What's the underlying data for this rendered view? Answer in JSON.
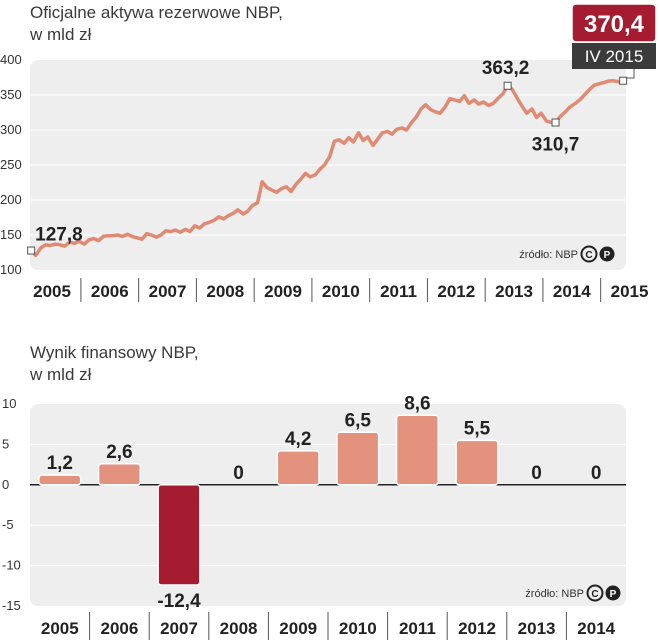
{
  "chart_data": [
    {
      "type": "line",
      "title": "Oficjalne aktywa rezerwowe NBP,",
      "subtitle": "w mld zł",
      "ylim": [
        100,
        400
      ],
      "yticks": [
        "400",
        "350",
        "300",
        "250",
        "200",
        "150",
        "100"
      ],
      "categories": [
        "2005",
        "2006",
        "2007",
        "2008",
        "2009",
        "2010",
        "2011",
        "2012",
        "2013",
        "2014",
        "2015"
      ],
      "series": [
        {
          "x": [
            2005.0,
            2005.08,
            2005.17,
            2005.25,
            2005.33,
            2005.42,
            2005.5,
            2005.58,
            2005.67,
            2005.75,
            2005.83,
            2005.92,
            2006.0,
            2006.08,
            2006.17,
            2006.25,
            2006.33,
            2006.42,
            2006.5,
            2006.58,
            2006.67,
            2006.75,
            2006.83,
            2006.92,
            2007.0,
            2007.08,
            2007.17,
            2007.25,
            2007.33,
            2007.42,
            2007.5,
            2007.58,
            2007.67,
            2007.75,
            2007.83,
            2007.92,
            2008.0,
            2008.08,
            2008.17,
            2008.25,
            2008.33,
            2008.42,
            2008.5,
            2008.58,
            2008.67,
            2008.75,
            2008.83,
            2008.92,
            2009.0,
            2009.08,
            2009.17,
            2009.25,
            2009.33,
            2009.42,
            2009.5,
            2009.58,
            2009.67,
            2009.75,
            2009.83,
            2009.92,
            2010.0,
            2010.08,
            2010.17,
            2010.25,
            2010.33,
            2010.42,
            2010.5,
            2010.58,
            2010.67,
            2010.75,
            2010.83,
            2010.92,
            2011.0,
            2011.08,
            2011.17,
            2011.25,
            2011.33,
            2011.42,
            2011.5,
            2011.58,
            2011.67,
            2011.75,
            2011.83,
            2011.92,
            2012.0,
            2012.08,
            2012.17,
            2012.25,
            2012.33,
            2012.42,
            2012.5,
            2012.58,
            2012.67,
            2012.75,
            2012.83,
            2012.92,
            2013.0,
            2013.08,
            2013.17,
            2013.25,
            2013.33,
            2013.42,
            2013.5,
            2013.58,
            2013.67,
            2013.75,
            2013.83,
            2013.92,
            2014.0,
            2014.08,
            2014.17,
            2014.25,
            2014.33,
            2014.42,
            2014.5,
            2014.58,
            2014.67,
            2014.75,
            2014.83,
            2014.92,
            2015.0,
            2015.08,
            2015.17,
            2015.25
          ],
          "values": [
            127.8,
            121,
            132,
            136,
            135,
            137,
            136,
            134,
            140,
            138,
            141,
            137,
            143,
            145,
            142,
            148,
            149,
            149,
            150,
            148,
            151,
            148,
            146,
            144,
            152,
            150,
            147,
            150,
            156,
            155,
            157,
            154,
            158,
            155,
            163,
            160,
            166,
            168,
            171,
            176,
            173,
            178,
            181,
            186,
            180,
            184,
            192,
            196,
            226,
            218,
            214,
            211,
            216,
            219,
            212,
            222,
            230,
            238,
            233,
            236,
            244,
            250,
            262,
            284,
            286,
            281,
            289,
            283,
            296,
            285,
            290,
            278,
            287,
            296,
            298,
            294,
            301,
            303,
            300,
            310,
            319,
            330,
            336,
            329,
            326,
            324,
            333,
            345,
            343,
            341,
            349,
            338,
            343,
            337,
            340,
            335,
            338,
            345,
            352,
            363.2,
            358,
            345,
            334,
            324,
            330,
            318,
            324,
            313,
            311,
            310.7,
            320,
            326,
            333,
            338,
            343,
            350,
            358,
            364,
            366,
            368,
            370,
            370.4,
            369,
            370.4
          ]
        }
      ],
      "annotations": [
        {
          "x": 2005.0,
          "y": 127.8,
          "label": "127,8"
        },
        {
          "x": 2013.25,
          "y": 363.2,
          "label": "363,2"
        },
        {
          "x": 2014.08,
          "y": 310.7,
          "label": "310,7"
        }
      ],
      "last_value": {
        "x": 2015.25,
        "value": "370,4",
        "period": "IV 2015"
      },
      "source": "źródło: NBP",
      "color": "#e08a73"
    },
    {
      "type": "bar",
      "title": "Wynik finansowy NBP,",
      "subtitle": "w mld zł",
      "ylim": [
        -15,
        10
      ],
      "yticks": [
        10,
        5,
        0,
        -5,
        -10,
        -15
      ],
      "ytick_labels": [
        "10",
        "5",
        "0",
        "-5",
        "-10",
        "-15"
      ],
      "categories": [
        "2005",
        "2006",
        "2007",
        "2008",
        "2009",
        "2010",
        "2011",
        "2012",
        "2013",
        "2014"
      ],
      "values": [
        1.2,
        2.6,
        -12.4,
        0,
        4.2,
        6.5,
        8.6,
        5.5,
        0,
        0
      ],
      "labels": [
        "1,2",
        "2,6",
        "-12,4",
        "0",
        "4,2",
        "6,5",
        "8,6",
        "5,5",
        "0",
        "0"
      ],
      "source": "źródło: NBP",
      "positive_color": "#e2927d",
      "negative_color": "#a51c30"
    }
  ]
}
